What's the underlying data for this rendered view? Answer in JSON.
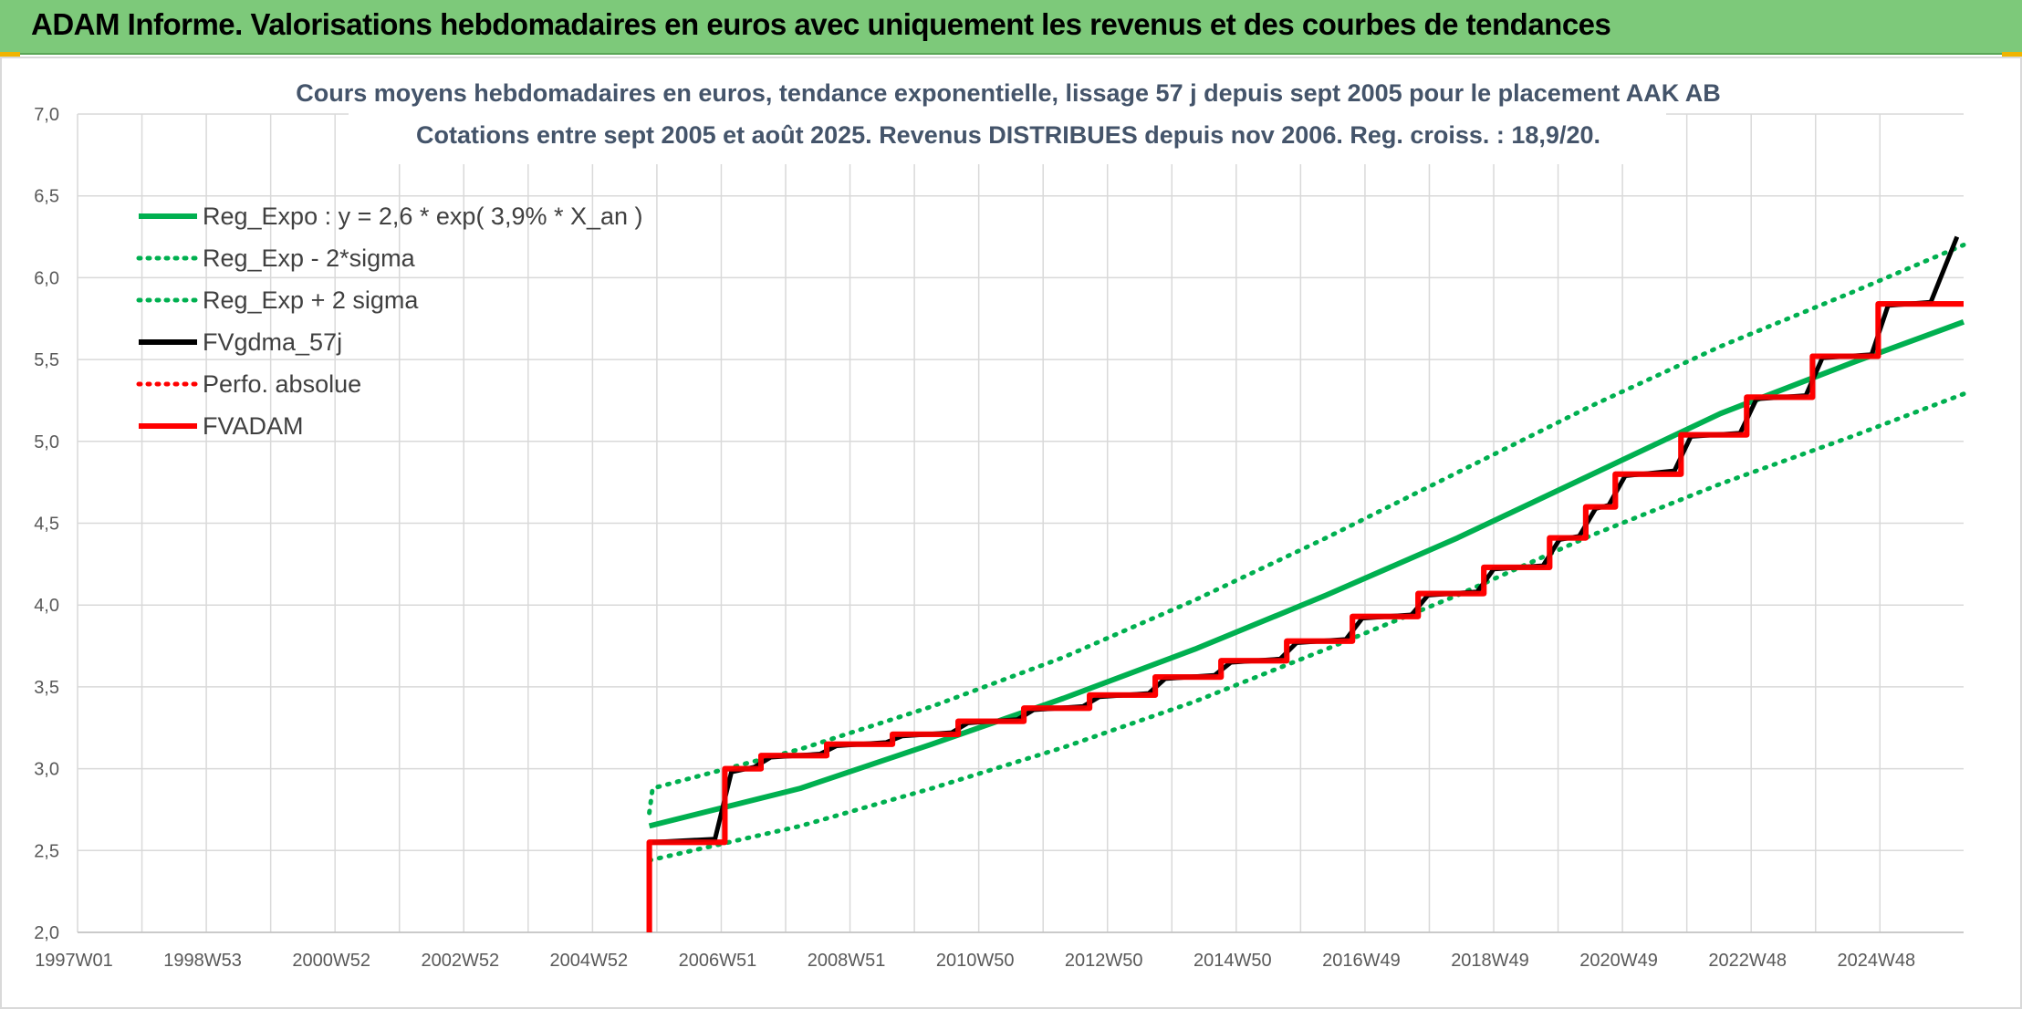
{
  "header": {
    "title": "ADAM Informe. Valorisations hebdomadaires en euros avec uniquement les revenus et des courbes de tendances"
  },
  "colors": {
    "banner": "#7dc97a",
    "green": "#00b050",
    "red": "#ff0000",
    "black": "#000000",
    "grid": "#d9d9d9"
  },
  "chart_data": {
    "type": "line",
    "title": "Cours moyens hebdomadaires en euros, tendance exponentielle, lissage 57 j depuis sept 2005 pour le placement AAK AB",
    "subtitle": "Cotations entre sept 2005 et août 2025. Revenus DISTRIBUES depuis nov 2006. Reg. croiss. : 18,9/20.",
    "xlabel": "",
    "ylabel": "",
    "x_tick_labels": [
      "1997W01",
      "1998W53",
      "2000W52",
      "2002W52",
      "2004W52",
      "2006W51",
      "2008W51",
      "2010W50",
      "2012W50",
      "2014W50",
      "2016W49",
      "2018W49",
      "2020W49",
      "2022W48",
      "2024W48"
    ],
    "x_range": [
      1997.0,
      2025.7
    ],
    "ylim": [
      2.0,
      7.0
    ],
    "y_ticks": [
      "2,0",
      "2,5",
      "3,0",
      "3,5",
      "4,0",
      "4,5",
      "5,0",
      "5,5",
      "6,0",
      "6,5",
      "7,0"
    ],
    "grid": true,
    "legend_position": "top-left",
    "legend": [
      {
        "label": "Reg_Expo : y = 2,6 * exp( 3,9% *  X_an )",
        "color": "#00b050",
        "style": "solid"
      },
      {
        "label": "Reg_Exp - 2*sigma",
        "color": "#00b050",
        "style": "dotted"
      },
      {
        "label": "Reg_Exp + 2 sigma",
        "color": "#00b050",
        "style": "dotted"
      },
      {
        "label": "FVgdma_57j",
        "color": "#000000",
        "style": "solid"
      },
      {
        "label": "Perfo. absolue",
        "color": "#ff0000",
        "style": "dotted"
      },
      {
        "label": "FVADAM",
        "color": "#ff0000",
        "style": "solid"
      }
    ],
    "series": [
      {
        "name": "Reg_Expo : y = 2,6 * exp( 3,9% *  X_an )",
        "x": [
          2005.7,
          2008.0,
          2010.0,
          2012.0,
          2014.0,
          2016.0,
          2018.0,
          2020.0,
          2022.0,
          2024.0,
          2025.7
        ],
        "values": [
          2.65,
          2.88,
          3.15,
          3.43,
          3.73,
          4.06,
          4.41,
          4.79,
          5.17,
          5.48,
          5.73
        ]
      },
      {
        "name": "Reg_Exp - 2*sigma",
        "x": [
          2005.7,
          2008.0,
          2010.0,
          2012.0,
          2014.0,
          2016.0,
          2018.0,
          2020.0,
          2022.0,
          2024.0,
          2025.7
        ],
        "values": [
          2.44,
          2.65,
          2.88,
          3.13,
          3.41,
          3.73,
          4.06,
          4.42,
          4.74,
          5.03,
          5.29
        ]
      },
      {
        "name": "Reg_Exp + 2 sigma",
        "x": [
          2005.7,
          2005.75,
          2008.0,
          2010.0,
          2012.0,
          2014.0,
          2016.0,
          2018.0,
          2020.0,
          2022.0,
          2024.0,
          2025.7
        ],
        "values": [
          2.73,
          2.88,
          3.12,
          3.38,
          3.68,
          4.03,
          4.41,
          4.81,
          5.21,
          5.58,
          5.91,
          6.2
        ]
      },
      {
        "name": "FVADAM",
        "x": [
          2005.7,
          2005.7,
          2006.85,
          2006.85,
          2007.4,
          2007.4,
          2008.4,
          2008.4,
          2009.4,
          2009.4,
          2010.4,
          2010.4,
          2011.4,
          2011.4,
          2012.4,
          2012.4,
          2013.4,
          2013.4,
          2014.4,
          2014.4,
          2015.4,
          2015.4,
          2016.4,
          2016.4,
          2017.4,
          2017.4,
          2018.4,
          2018.4,
          2019.4,
          2019.4,
          2019.95,
          2019.95,
          2020.4,
          2020.4,
          2021.4,
          2021.4,
          2022.4,
          2022.4,
          2023.4,
          2023.4,
          2024.4,
          2024.4,
          2025.7
        ],
        "values": [
          2.0,
          2.55,
          2.55,
          3.0,
          3.0,
          3.08,
          3.08,
          3.15,
          3.15,
          3.21,
          3.21,
          3.29,
          3.29,
          3.37,
          3.37,
          3.45,
          3.45,
          3.56,
          3.56,
          3.66,
          3.66,
          3.78,
          3.78,
          3.93,
          3.93,
          4.07,
          4.07,
          4.23,
          4.23,
          4.41,
          4.41,
          4.6,
          4.6,
          4.8,
          4.8,
          5.04,
          5.04,
          5.27,
          5.27,
          5.52,
          5.52,
          5.84,
          5.84
        ]
      },
      {
        "name": "FVgdma_57j",
        "x": [
          2005.75,
          2006.7,
          2006.95,
          2007.3,
          2007.55,
          2008.3,
          2008.55,
          2009.3,
          2009.55,
          2010.3,
          2010.55,
          2011.3,
          2011.55,
          2012.3,
          2012.55,
          2013.3,
          2013.55,
          2014.3,
          2014.55,
          2015.3,
          2015.55,
          2016.3,
          2016.55,
          2017.3,
          2017.55,
          2018.3,
          2018.55,
          2019.3,
          2019.55,
          2019.85,
          2020.1,
          2020.3,
          2020.55,
          2021.3,
          2021.55,
          2022.3,
          2022.55,
          2023.3,
          2023.55,
          2024.3,
          2024.55,
          2025.2,
          2025.6
        ],
        "values": [
          2.55,
          2.57,
          2.98,
          3.01,
          3.07,
          3.09,
          3.14,
          3.16,
          3.2,
          3.22,
          3.28,
          3.3,
          3.36,
          3.38,
          3.44,
          3.46,
          3.55,
          3.57,
          3.65,
          3.67,
          3.77,
          3.79,
          3.92,
          3.94,
          4.06,
          4.08,
          4.22,
          4.24,
          4.4,
          4.42,
          4.59,
          4.61,
          4.79,
          4.82,
          5.03,
          5.05,
          5.26,
          5.28,
          5.51,
          5.53,
          5.83,
          5.85,
          6.25
        ]
      }
    ]
  }
}
